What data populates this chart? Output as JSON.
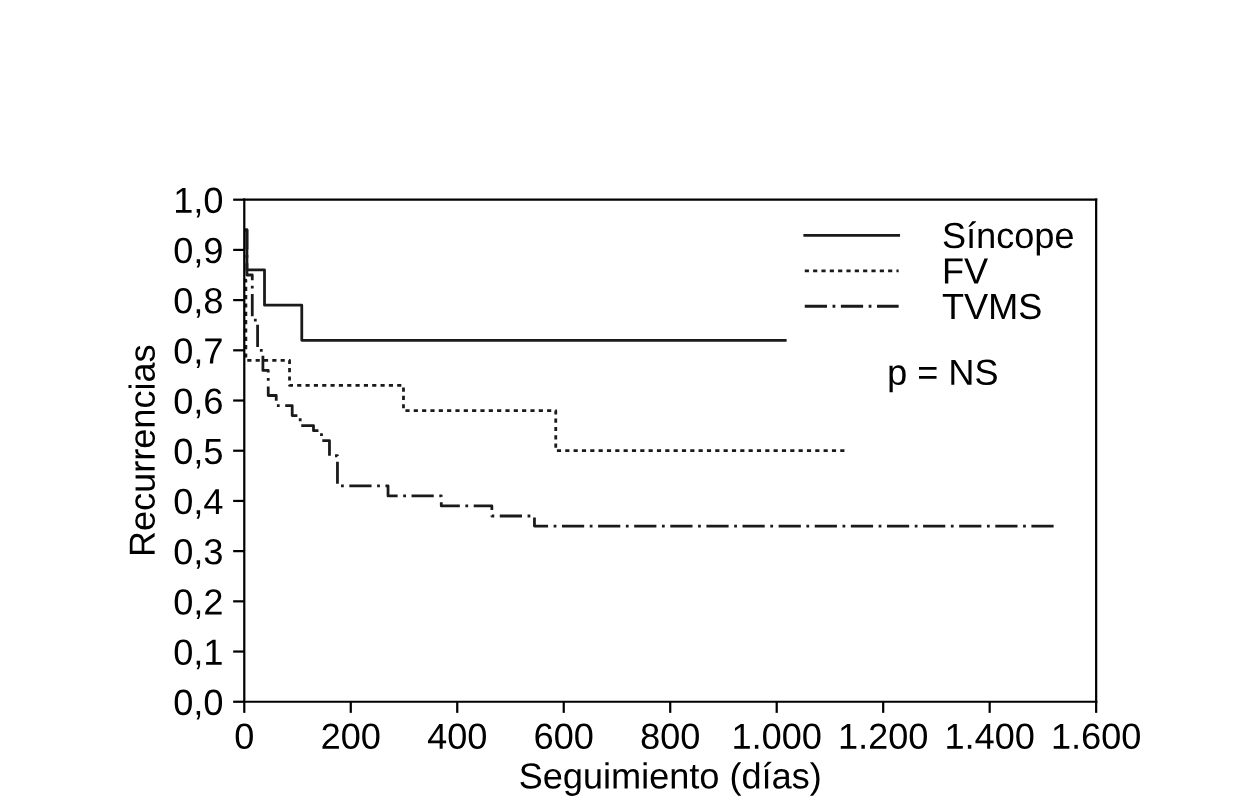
{
  "chart_data": {
    "type": "step",
    "xlabel": "Seguimiento (días)",
    "ylabel": "Recurrencias",
    "xlim": [
      0,
      1600
    ],
    "ylim": [
      0,
      1.0
    ],
    "xticks": [
      0,
      200,
      400,
      600,
      800,
      {
        "value": 1000,
        "label": "1.000"
      },
      {
        "value": 1200,
        "label": "1.200"
      },
      {
        "value": 1400,
        "label": "1.400"
      },
      {
        "value": 1600,
        "label": "1.600"
      }
    ],
    "yticks": [
      {
        "value": 0,
        "label": "0,0"
      },
      {
        "value": 0.1,
        "label": "0,1"
      },
      {
        "value": 0.2,
        "label": "0,2"
      },
      {
        "value": 0.3,
        "label": "0,3"
      },
      {
        "value": 0.4,
        "label": "0,4"
      },
      {
        "value": 0.5,
        "label": "0,5"
      },
      {
        "value": 0.6,
        "label": "0,6"
      },
      {
        "value": 0.7,
        "label": "0,7"
      },
      {
        "value": 0.8,
        "label": "0,8"
      },
      {
        "value": 0.9,
        "label": "0,9"
      },
      {
        "value": 1.0,
        "label": "1,0"
      }
    ],
    "legend": "top right",
    "grid": false,
    "annotations": [
      "p = NS"
    ],
    "series": [
      {
        "name": "Síncope",
        "color": "#1a1a1a",
        "line_style": "solid",
        "x": [
          0,
          5,
          38,
          108,
          1016
        ],
        "values": [
          0.94,
          0.86,
          0.79,
          0.72,
          0.72
        ]
      },
      {
        "name": "FV",
        "color": "#1a1a1a",
        "line_style": "dotted",
        "x": [
          0,
          3,
          85,
          299,
          585,
          1134
        ],
        "values": [
          0.84,
          0.68,
          0.63,
          0.58,
          0.5,
          0.5
        ]
      },
      {
        "name": "TVMS",
        "color": "#1a1a1a",
        "line_style": "dashdot",
        "x": [
          0,
          5,
          15,
          25,
          35,
          45,
          60,
          90,
          105,
          130,
          145,
          160,
          175,
          270,
          370,
          465,
          545,
          1530
        ],
        "values": [
          0.94,
          0.85,
          0.76,
          0.7,
          0.66,
          0.61,
          0.59,
          0.57,
          0.55,
          0.54,
          0.52,
          0.49,
          0.43,
          0.41,
          0.39,
          0.37,
          0.35,
          0.35
        ]
      }
    ]
  }
}
